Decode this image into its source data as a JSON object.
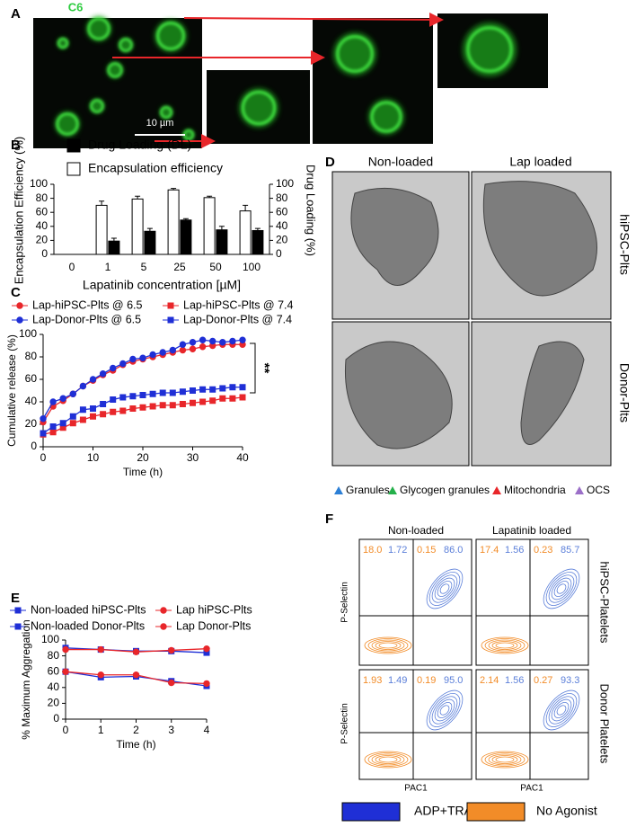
{
  "chart_data": [
    {
      "type": "bar",
      "panel": "B",
      "categories": [
        "0",
        "1",
        "5",
        "25",
        "50",
        "100"
      ],
      "x_label": "Lapatinib concentration [µM]",
      "y_label": "Encapsulation Efficiency (%)",
      "y2_label": "Drug Loading (%)",
      "ylim": [
        0,
        100
      ],
      "yticks": [
        0,
        20,
        40,
        60,
        80,
        100
      ],
      "y2lim": [
        0,
        100
      ],
      "y2ticks": [
        0,
        20,
        40,
        60,
        80,
        100
      ],
      "series": [
        {
          "name": "Drug Loading (DL)",
          "color": "#000000",
          "axis": "y2",
          "values": [
            0,
            19,
            33,
            49,
            35,
            34
          ],
          "errors": [
            0,
            4,
            4,
            2,
            5,
            3
          ]
        },
        {
          "name": "Encapsulation efficiency",
          "color": "#ffffff",
          "values": [
            0,
            70,
            79,
            92,
            81,
            62
          ],
          "errors": [
            0,
            6,
            4,
            2,
            2,
            8
          ]
        }
      ]
    },
    {
      "type": "line",
      "panel": "C",
      "x": [
        0,
        2,
        4,
        6,
        8,
        10,
        12,
        14,
        16,
        18,
        20,
        22,
        24,
        26,
        28,
        30,
        32,
        34,
        36,
        38,
        40
      ],
      "xlim": [
        0,
        40
      ],
      "xticks": [
        0,
        10,
        20,
        30,
        40
      ],
      "ylim": [
        0,
        100
      ],
      "yticks": [
        0,
        20,
        40,
        60,
        80,
        100
      ],
      "x_label": "Time (h)",
      "y_label": "Cumulative release (%)",
      "annotation": "**",
      "series": [
        {
          "name": "Lap-hiPSC-Plts @ 6.5",
          "color": "#e8262a",
          "marker": "circle",
          "values": [
            22,
            36,
            41,
            47,
            54,
            59,
            64,
            68,
            73,
            76,
            78,
            80,
            82,
            84,
            86,
            87,
            89,
            90,
            91,
            91,
            91
          ]
        },
        {
          "name": "Lap-hiPSC-Plts @ 7.4",
          "color": "#e8262a",
          "marker": "square",
          "values": [
            11,
            13,
            17,
            21,
            24,
            27,
            29,
            31,
            32,
            34,
            35,
            36,
            37,
            37,
            38,
            39,
            40,
            41,
            43,
            43,
            44
          ]
        },
        {
          "name": "Lap-Donor-Plts @ 6.5",
          "color": "#1f2fd6",
          "marker": "circle",
          "values": [
            25,
            40,
            43,
            47,
            54,
            60,
            65,
            70,
            74,
            78,
            79,
            82,
            84,
            86,
            91,
            93,
            95,
            94,
            93,
            94,
            95
          ]
        },
        {
          "name": "Lap-Donor-Plts @ 7.4",
          "color": "#1f2fd6",
          "marker": "square",
          "values": [
            12,
            18,
            21,
            27,
            33,
            34,
            38,
            42,
            44,
            45,
            46,
            47,
            48,
            48,
            49,
            50,
            51,
            51,
            52,
            53,
            53
          ]
        }
      ]
    },
    {
      "type": "line",
      "panel": "E",
      "x": [
        0,
        1,
        2,
        3,
        4
      ],
      "xlim": [
        0,
        4
      ],
      "xticks": [
        0,
        1,
        2,
        3,
        4
      ],
      "ylim": [
        0,
        100
      ],
      "yticks": [
        0,
        20,
        40,
        60,
        80,
        100
      ],
      "x_label": "Time (h)",
      "y_label": "% Maximum Aggregation",
      "series": [
        {
          "name": "Non-loaded hiPSC-Plts",
          "color": "#1f2fd6",
          "marker": "square",
          "values": [
            90,
            88,
            86,
            86,
            84
          ]
        },
        {
          "name": "Lap hiPSC-Plts",
          "color": "#e8262a",
          "marker": "circle",
          "values": [
            88,
            88,
            85,
            87,
            89
          ]
        },
        {
          "name": "Non-loaded Donor-Plts",
          "color": "#1f2fd6",
          "marker": "square",
          "values": [
            60,
            53,
            54,
            48,
            42
          ]
        },
        {
          "name": "Lap Donor-Plts",
          "color": "#e8262a",
          "marker": "circle",
          "values": [
            60,
            56,
            56,
            46,
            45
          ]
        }
      ]
    }
  ],
  "panel_a": {
    "label": "A",
    "stain": "C6",
    "scale_bar": "10 µm"
  },
  "panel_d": {
    "label": "D",
    "columns": [
      "Non-loaded",
      "Lap loaded"
    ],
    "rows": [
      "hiPSC-Plts",
      "Donor-Plts"
    ],
    "legend": [
      "Granules",
      "Glycogen granules",
      "Mitochondria",
      "OCS"
    ]
  },
  "panel_f": {
    "label": "F",
    "columns": [
      "Non-loaded",
      "Lapatinib loaded"
    ],
    "rows": [
      "hiPSC-Platelets",
      "Donor Platelets"
    ],
    "y_label": "P-Selectin",
    "x_label": "PAC1",
    "quadrants": [
      [
        "18.0",
        "1.72",
        "0.15",
        "86.0"
      ],
      [
        "17.4",
        "1.56",
        "0.23",
        "85.7"
      ],
      [
        "1.93",
        "1.49",
        "0.19",
        "95.0"
      ],
      [
        "2.14",
        "1.56",
        "0.27",
        "93.3"
      ]
    ],
    "legend": [
      "ADP+TRAP",
      "No Agonist"
    ]
  }
}
